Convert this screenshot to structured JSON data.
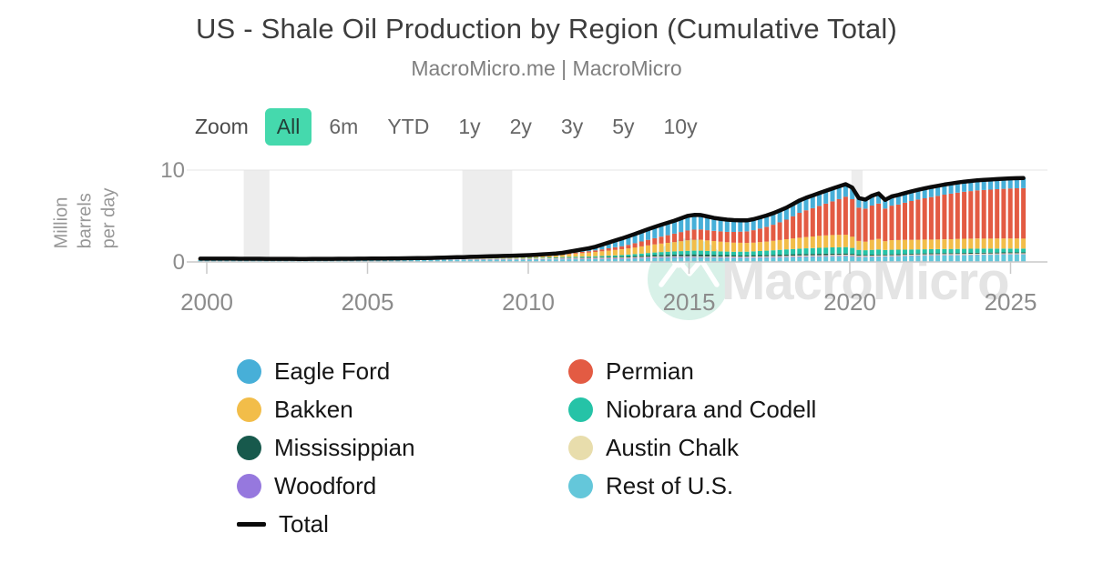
{
  "header": {
    "title": "US - Shale Oil Production by Region (Cumulative Total)",
    "subtitle": "MacroMicro.me | MacroMicro"
  },
  "toolbar": {
    "zoom_label": "Zoom",
    "ranges": [
      "All",
      "6m",
      "YTD",
      "1y",
      "2y",
      "3y",
      "5y",
      "10y"
    ],
    "active_range": "All",
    "active_bg": "#45d9ad",
    "active_fg": "#234038"
  },
  "watermark": {
    "text": "MacroMicro",
    "logo": "mountain-peaks-icon",
    "circle_color": "#d8f1e8",
    "glyph_color": "#ffffff",
    "text_color": "#e4e4e4"
  },
  "chart_data": {
    "type": "bar",
    "stacked": true,
    "title": "US - Shale Oil Production by Region (Cumulative Total)",
    "xlabel": "",
    "ylabel": "Million barrels per day",
    "ylabel_lines": [
      "Million",
      "barrels",
      "per day"
    ],
    "ylim": [
      0,
      10.5
    ],
    "yticks": [
      0,
      10
    ],
    "xlim": [
      1999.5,
      2026.1
    ],
    "xticks": [
      2000,
      2005,
      2010,
      2015,
      2020,
      2025
    ],
    "grid": "top-line-only",
    "legend_position": "bottom",
    "axis_color": "#c9c9c9",
    "tick_label_color": "#8c8c8c",
    "band_color": "#ededed",
    "recession_bands": [
      [
        2001.15,
        2001.95
      ],
      [
        2007.95,
        2009.5
      ],
      [
        2020.05,
        2020.4
      ]
    ],
    "x": [
      2000,
      2001,
      2002,
      2003,
      2004,
      2005,
      2006,
      2007,
      2008,
      2009,
      2010,
      2011,
      2012,
      2013,
      2014,
      2014.5,
      2015,
      2015.3,
      2015.8,
      2016.3,
      2016.8,
      2017,
      2017.5,
      2018,
      2018.5,
      2019,
      2019.5,
      2020,
      2020.2,
      2020.4,
      2020.6,
      2020.9,
      2021.1,
      2021.3,
      2021.5,
      2022,
      2022.5,
      2023,
      2023.5,
      2024,
      2024.5,
      2025,
      2025.6
    ],
    "series": [
      {
        "name": "Eagle Ford",
        "color": "#47afd8",
        "values": [
          0,
          0,
          0,
          0,
          0,
          0,
          0,
          0,
          0.02,
          0.03,
          0.06,
          0.1,
          0.35,
          0.9,
          1.25,
          1.4,
          1.6,
          1.6,
          1.4,
          1.3,
          1.2,
          1.2,
          1.25,
          1.3,
          1.35,
          1.4,
          1.4,
          1.35,
          1.1,
          0.95,
          1.05,
          1.1,
          0.95,
          1.0,
          1.05,
          1.05,
          1.1,
          1.1,
          1.1,
          1.1,
          1.1,
          1.1,
          1.1
        ]
      },
      {
        "name": "Permian",
        "color": "#e35b43",
        "values": [
          0,
          0,
          0,
          0,
          0,
          0,
          0,
          0,
          0.02,
          0.03,
          0.05,
          0.1,
          0.15,
          0.35,
          0.7,
          0.9,
          1.1,
          1.12,
          1.1,
          1.15,
          1.25,
          1.35,
          1.65,
          2.1,
          2.8,
          3.2,
          3.7,
          4.3,
          3.7,
          3.5,
          3.7,
          3.85,
          3.55,
          3.75,
          3.85,
          4.3,
          4.6,
          4.9,
          5.1,
          5.25,
          5.35,
          5.45,
          5.5
        ]
      },
      {
        "name": "Bakken",
        "color": "#f2bd49",
        "values": [
          0,
          0,
          0,
          0,
          0,
          0.02,
          0.05,
          0.08,
          0.12,
          0.18,
          0.18,
          0.22,
          0.45,
          0.65,
          0.9,
          1.0,
          1.15,
          1.2,
          1.1,
          1.0,
          0.95,
          0.95,
          1.0,
          1.1,
          1.2,
          1.3,
          1.35,
          1.35,
          1.05,
          0.85,
          1.05,
          1.15,
          0.95,
          1.05,
          1.05,
          1.05,
          1.05,
          1.05,
          1.1,
          1.1,
          1.1,
          1.1,
          1.1
        ]
      },
      {
        "name": "Niobrara and Codell",
        "color": "#25c3a7",
        "values": [
          0,
          0,
          0,
          0,
          0,
          0,
          0,
          0,
          0,
          0.02,
          0.05,
          0.08,
          0.1,
          0.18,
          0.3,
          0.34,
          0.4,
          0.42,
          0.4,
          0.38,
          0.4,
          0.42,
          0.48,
          0.55,
          0.6,
          0.65,
          0.68,
          0.7,
          0.55,
          0.5,
          0.52,
          0.55,
          0.5,
          0.5,
          0.5,
          0.45,
          0.45,
          0.45,
          0.45,
          0.45,
          0.42,
          0.4,
          0.4
        ]
      },
      {
        "name": "Mississippian",
        "color": "#17594c",
        "values": [
          0,
          0,
          0,
          0,
          0,
          0,
          0,
          0,
          0,
          0,
          0.02,
          0.03,
          0.06,
          0.1,
          0.15,
          0.18,
          0.2,
          0.2,
          0.18,
          0.15,
          0.14,
          0.14,
          0.14,
          0.15,
          0.15,
          0.15,
          0.14,
          0.12,
          0.11,
          0.1,
          0.1,
          0.1,
          0.1,
          0.1,
          0.1,
          0.1,
          0.1,
          0.1,
          0.1,
          0.1,
          0.1,
          0.1,
          0.1
        ]
      },
      {
        "name": "Austin Chalk",
        "color": "#e8ddac",
        "values": [
          0.15,
          0.14,
          0.13,
          0.12,
          0.12,
          0.11,
          0.1,
          0.1,
          0.09,
          0.08,
          0.08,
          0.08,
          0.08,
          0.08,
          0.08,
          0.08,
          0.08,
          0.08,
          0.08,
          0.08,
          0.08,
          0.08,
          0.09,
          0.1,
          0.11,
          0.1,
          0.11,
          0.12,
          0.11,
          0.1,
          0.1,
          0.1,
          0.1,
          0.1,
          0.1,
          0.1,
          0.1,
          0.1,
          0.1,
          0.1,
          0.1,
          0.1,
          0.1
        ]
      },
      {
        "name": "Woodford",
        "color": "#9678de",
        "values": [
          0.01,
          0.01,
          0.01,
          0.01,
          0.01,
          0.01,
          0.02,
          0.03,
          0.04,
          0.05,
          0.05,
          0.06,
          0.07,
          0.08,
          0.1,
          0.1,
          0.09,
          0.09,
          0.08,
          0.08,
          0.08,
          0.08,
          0.08,
          0.08,
          0.08,
          0.08,
          0.08,
          0.08,
          0.07,
          0.06,
          0.06,
          0.06,
          0.06,
          0.06,
          0.06,
          0.06,
          0.06,
          0.06,
          0.05,
          0.05,
          0.05,
          0.05,
          0.05
        ]
      },
      {
        "name": "Rest of U.S.",
        "color": "#64c7da",
        "values": [
          0.2,
          0.2,
          0.2,
          0.2,
          0.21,
          0.22,
          0.22,
          0.23,
          0.24,
          0.24,
          0.24,
          0.28,
          0.3,
          0.32,
          0.42,
          0.44,
          0.45,
          0.45,
          0.43,
          0.42,
          0.42,
          0.43,
          0.45,
          0.48,
          0.52,
          0.55,
          0.58,
          0.6,
          0.52,
          0.5,
          0.52,
          0.55,
          0.55,
          0.57,
          0.58,
          0.65,
          0.68,
          0.7,
          0.72,
          0.75,
          0.78,
          0.8,
          0.8
        ]
      }
    ],
    "total": {
      "name": "Total",
      "color": "#0b0b0b",
      "style": "line"
    },
    "stack_order_bottom_to_top": [
      "Rest of U.S.",
      "Woodford",
      "Austin Chalk",
      "Mississippian",
      "Niobrara and Codell",
      "Bakken",
      "Permian",
      "Eagle Ford"
    ],
    "legend_columns": [
      [
        "Eagle Ford",
        "Bakken",
        "Mississippian",
        "Woodford",
        "Total"
      ],
      [
        "Permian",
        "Niobrara and Codell",
        "Austin Chalk",
        "Rest of U.S."
      ]
    ]
  }
}
